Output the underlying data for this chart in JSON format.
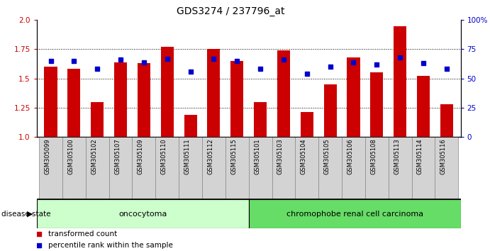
{
  "title": "GDS3274 / 237796_at",
  "samples": [
    "GSM305099",
    "GSM305100",
    "GSM305102",
    "GSM305107",
    "GSM305109",
    "GSM305110",
    "GSM305111",
    "GSM305112",
    "GSM305115",
    "GSM305101",
    "GSM305103",
    "GSM305104",
    "GSM305105",
    "GSM305106",
    "GSM305108",
    "GSM305113",
    "GSM305114",
    "GSM305116"
  ],
  "bar_values": [
    1.6,
    1.58,
    1.3,
    1.64,
    1.63,
    1.77,
    1.19,
    1.75,
    1.65,
    1.3,
    1.74,
    1.21,
    1.45,
    1.68,
    1.55,
    1.95,
    1.52,
    1.28
  ],
  "dot_values": [
    65,
    65,
    58,
    66,
    64,
    67,
    56,
    67,
    65,
    58,
    66,
    54,
    60,
    64,
    62,
    68,
    63,
    58
  ],
  "bar_color": "#cc0000",
  "dot_color": "#0000cc",
  "ymin": 1.0,
  "ymax": 2.0,
  "yticks_left": [
    1.0,
    1.25,
    1.5,
    1.75,
    2.0
  ],
  "yticks_right": [
    0,
    25,
    50,
    75,
    100
  ],
  "group1_label": "oncocytoma",
  "group2_label": "chromophobe renal cell carcinoma",
  "group1_count": 9,
  "group2_count": 9,
  "group1_color": "#ccffcc",
  "group2_color": "#66dd66",
  "disease_state_label": "disease state",
  "legend_bar": "transformed count",
  "legend_dot": "percentile rank within the sample",
  "xlabel_bg": "#d3d3d3",
  "bg_color": "#ffffff"
}
